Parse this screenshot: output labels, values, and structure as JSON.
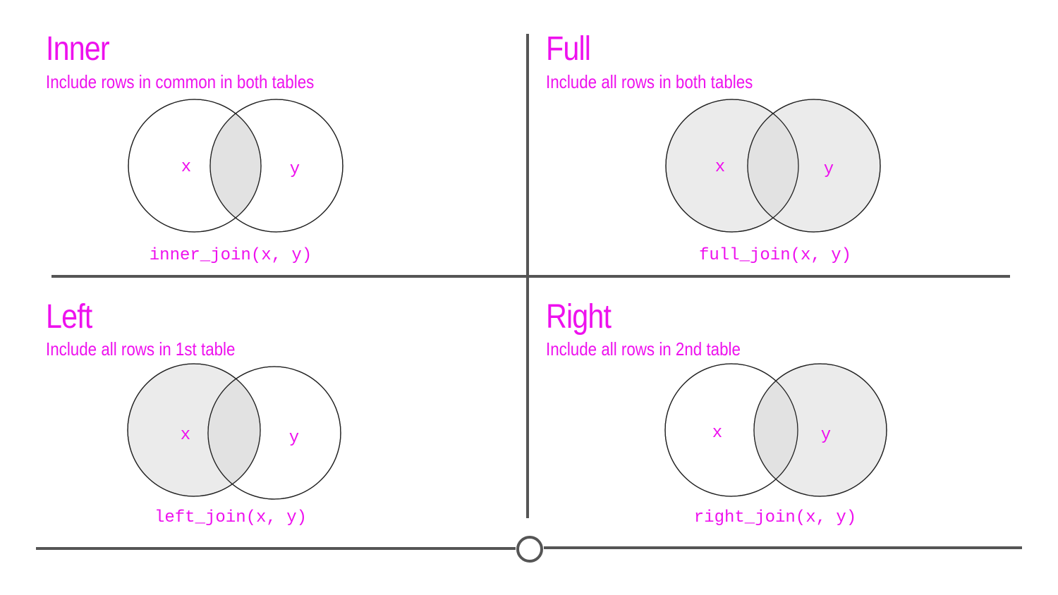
{
  "colors": {
    "accent": "#ee11ee",
    "line": "#555555",
    "fill": "#ebebeb",
    "overlap": "#e2e2e2",
    "stroke": "#222222",
    "background": "#ffffff"
  },
  "quadrants": [
    {
      "id": "inner",
      "title": "Inner",
      "subtitle": "Include rows in common in both tables",
      "function": "inner_join(x, y)",
      "left_label": "x",
      "right_label": "y",
      "shaded": "overlap"
    },
    {
      "id": "full",
      "title": "Full",
      "subtitle": "Include all rows in both tables",
      "function": "full_join(x, y)",
      "left_label": "x",
      "right_label": "y",
      "shaded": "both"
    },
    {
      "id": "left",
      "title": "Left",
      "subtitle": "Include all rows in 1st table",
      "function": "left_join(x, y)",
      "left_label": "x",
      "right_label": "y",
      "shaded": "left"
    },
    {
      "id": "right",
      "title": "Right",
      "subtitle": "Include all rows in 2nd table",
      "function": "right_join(x, y)",
      "left_label": "x",
      "right_label": "y",
      "shaded": "right"
    }
  ]
}
